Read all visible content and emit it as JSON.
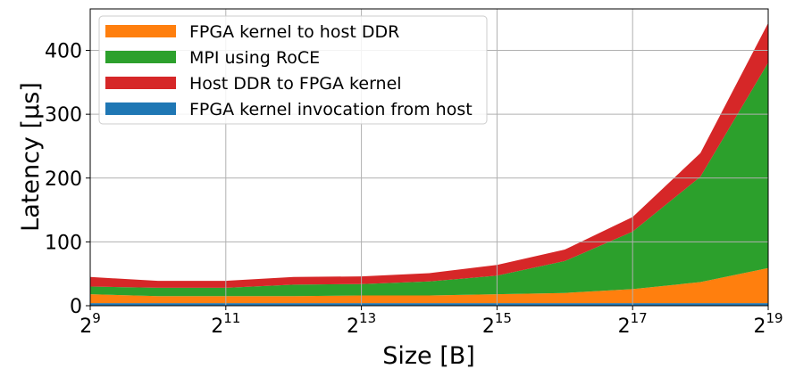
{
  "chart_data": {
    "type": "area",
    "stacked": true,
    "xlabel": "Size [B]",
    "ylabel": "Latency [µs]",
    "x_scale": "log2",
    "x": [
      512,
      1024,
      2048,
      4096,
      8192,
      16384,
      32768,
      65536,
      131072,
      262144,
      524288
    ],
    "xlim": [
      512,
      524288
    ],
    "ylim": [
      0,
      465
    ],
    "x_ticks": [
      {
        "value": 512,
        "base": "2",
        "exp": "9"
      },
      {
        "value": 2048,
        "base": "2",
        "exp": "11"
      },
      {
        "value": 8192,
        "base": "2",
        "exp": "13"
      },
      {
        "value": 32768,
        "base": "2",
        "exp": "15"
      },
      {
        "value": 131072,
        "base": "2",
        "exp": "17"
      },
      {
        "value": 524288,
        "base": "2",
        "exp": "19"
      }
    ],
    "y_ticks": [
      0,
      100,
      200,
      300,
      400
    ],
    "grid": true,
    "legend_position": "top-left",
    "series": [
      {
        "name": "FPGA kernel invocation from host",
        "color": "#1f77b4",
        "values": [
          4,
          4,
          4,
          4,
          4,
          4,
          4,
          4,
          4,
          4,
          4
        ]
      },
      {
        "name": "FPGA kernel to host DDR",
        "color": "#ff7f0e",
        "values": [
          14,
          11,
          11,
          11,
          12,
          12,
          14,
          16,
          22,
          33,
          55
        ]
      },
      {
        "name": "MPI using RoCE",
        "color": "#2ca02c",
        "values": [
          12,
          13,
          13,
          18,
          18,
          22,
          29,
          50,
          90,
          165,
          322
        ]
      },
      {
        "name": "Host DDR to FPGA kernel",
        "color": "#d62728",
        "values": [
          15,
          11,
          11,
          12,
          12,
          13,
          17,
          18,
          23,
          37,
          62
        ]
      }
    ],
    "legend_order": [
      1,
      2,
      3,
      0
    ]
  }
}
